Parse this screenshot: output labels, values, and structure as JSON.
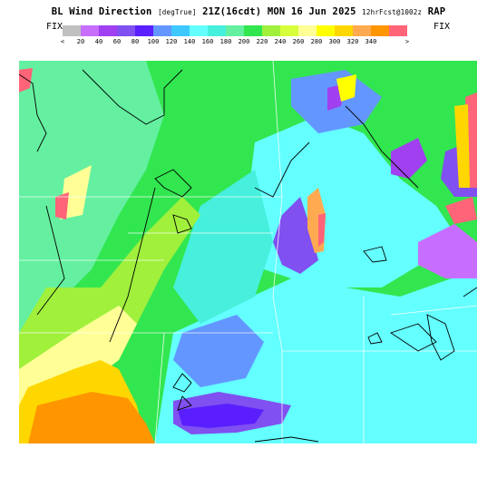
{
  "header": {
    "title_main": "BL Wind Direction",
    "title_units": "[degTrue]",
    "title_valid": "21Z(16cdt) MON 16 Jun 2025",
    "title_fcst": "12hrFcst@1002z",
    "title_model": "RAP"
  },
  "colorbar": {
    "left_label": "FIX",
    "right_label": "FIX",
    "colors": [
      "#c0c0c0",
      "#c86eff",
      "#a040f0",
      "#8050f0",
      "#5a1eff",
      "#6496ff",
      "#3ec8ff",
      "#64ffff",
      "#46f0dc",
      "#64f0a0",
      "#32e650",
      "#a0f03c",
      "#d7ff3c",
      "#ffff96",
      "#ffff00",
      "#ffd700",
      "#ffaa50",
      "#ff9600",
      "#ff6478"
    ],
    "ticks": [
      "<",
      "20",
      "40",
      "60",
      "80",
      "100",
      "120",
      "140",
      "160",
      "180",
      "200",
      "220",
      "240",
      "260",
      "280",
      "300",
      "320",
      "340",
      ">"
    ]
  }
}
